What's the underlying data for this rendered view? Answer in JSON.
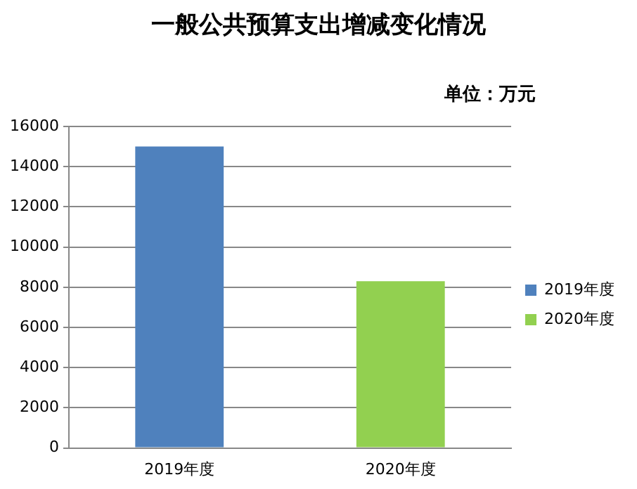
{
  "chart_data": {
    "type": "bar",
    "title": "一般公共预算支出增减变化情况",
    "subtitle": "单位：万元",
    "categories": [
      "2019年度",
      "2020年度"
    ],
    "series": [
      {
        "name": "2019年度",
        "color": "#4f81bd",
        "values": [
          15000,
          null
        ]
      },
      {
        "name": "2020年度",
        "color": "#92d050",
        "values": [
          null,
          8300
        ]
      }
    ],
    "ylim": [
      0,
      16000
    ],
    "yticks": [
      0,
      2000,
      4000,
      6000,
      8000,
      10000,
      12000,
      14000,
      16000
    ],
    "grid": "y",
    "legend": "right"
  }
}
